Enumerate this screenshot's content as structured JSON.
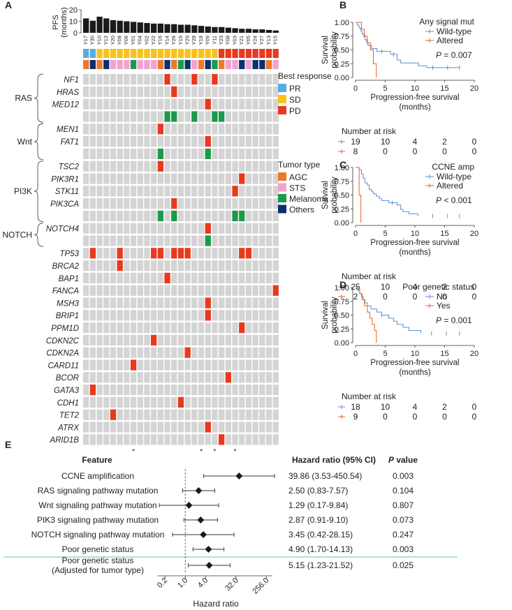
{
  "panels": {
    "A": "A",
    "B": "B",
    "C": "C",
    "D": "D",
    "E": "E"
  },
  "chart_data": [
    {
      "panel": "A",
      "type": "heatmap",
      "pfs": {
        "ylabel": "PFS (months)",
        "ylabel1": "PFS",
        "ylabel2": "(months)",
        "ticks": [
          0,
          10,
          20
        ],
        "ymax": 20,
        "values": [
          12.5,
          10.5,
          14,
          12.5,
          11,
          10.5,
          10,
          9.5,
          9,
          8.5,
          8,
          8,
          7.5,
          7.5,
          7,
          7,
          6.5,
          6,
          5.5,
          5,
          5,
          4.5,
          4,
          3.5,
          3.5,
          3,
          3,
          2.5,
          2
        ]
      },
      "patients": [
        "Y17",
        "Y30",
        "Y10",
        "Y12",
        "Y20",
        "Y08",
        "Y06",
        "Y01",
        "Y04",
        "Y02",
        "Y22",
        "Y16",
        "Y14",
        "Y26",
        "Y19",
        "Y29",
        "Y28",
        "Y18",
        "Y09",
        "Y11",
        "Y23",
        "Y08",
        "Y03",
        "Y21",
        "Y05",
        "Y24",
        "Y27",
        "Y13",
        "Y15"
      ],
      "best_response_legend_title": "Best response",
      "best_response_legend": [
        {
          "label": "PR",
          "color": "#5aace0"
        },
        {
          "label": "SD",
          "color": "#f7c21b"
        },
        {
          "label": "PD",
          "color": "#e8391e"
        }
      ],
      "best_response": [
        "PR",
        "PR",
        "SD",
        "SD",
        "SD",
        "SD",
        "SD",
        "SD",
        "SD",
        "SD",
        "SD",
        "SD",
        "SD",
        "SD",
        "SD",
        "SD",
        "SD",
        "SD",
        "SD",
        "SD",
        "PD",
        "PD",
        "PD",
        "PD",
        "PD",
        "PD",
        "PD",
        "PD",
        "PD"
      ],
      "tumor_type_legend_title": "Tumor type",
      "tumor_type_legend": [
        {
          "label": "AGC",
          "color": "#ec7a2a"
        },
        {
          "label": "STS",
          "color": "#f0a3cf"
        },
        {
          "label": "Melanoma",
          "color": "#1a9a4a"
        },
        {
          "label": "Others",
          "color": "#0e2f6e"
        }
      ],
      "tumor_type": [
        "AGC",
        "Others",
        "AGC",
        "Others",
        "STS",
        "STS",
        "STS",
        "Melanoma",
        "STS",
        "STS",
        "STS",
        "AGC",
        "Others",
        "AGC",
        "Melanoma",
        "Others",
        "STS",
        "AGC",
        "Others",
        "Melanoma",
        "AGC",
        "STS",
        "STS",
        "Others",
        "STS",
        "Others",
        "Others",
        "AGC",
        "STS"
      ],
      "pathways": [
        {
          "label": "RAS"
        },
        {
          "label": "Wnt"
        },
        {
          "label": "PI3K"
        },
        {
          "label": "NOTCH"
        }
      ],
      "genes": [
        "NF1",
        "HRAS",
        "MED12",
        "MEN1",
        "FAT1",
        "TSC2",
        "PIK3R1",
        "STK11",
        "PIK3CA",
        "NOTCH4",
        "TP53",
        "BRCA2",
        "BAP1",
        "FANCA",
        "MSH3",
        "BRIP1",
        "PPM1D",
        "CDKN2C",
        "CDKN2A",
        "CARD11",
        "BCOR",
        "GATA3",
        "CDH1",
        "TET2",
        "ATRX",
        "ARID1B"
      ],
      "asterisk": "*",
      "asterisk_cols": [
        7,
        17,
        19,
        22
      ]
    },
    {
      "panel": "B",
      "type": "line",
      "title": "Any signal mut",
      "xlabel": "Progression-free survival",
      "xlabel2": "(months)",
      "ylabel": "Survival probability",
      "ylabel1": "Survival",
      "ylabel2": "probability",
      "xticks": [
        0,
        5,
        10,
        15,
        20
      ],
      "yticks": [
        "0.00",
        "0.25",
        "0.50",
        "0.75",
        "1.00"
      ],
      "xlim": [
        0,
        20
      ],
      "ylim": [
        0,
        1
      ],
      "series": [
        {
          "name": "Wild-type",
          "color": "#5a8fd4",
          "x": [
            0,
            0.3,
            0.6,
            0.9,
            1.1,
            1.4,
            1.6,
            1.9,
            2.1,
            2.4,
            2.7,
            3.0,
            3.3,
            3.6,
            4.0,
            4.6,
            5.1,
            5.9,
            7.0,
            7.6,
            8.2,
            10.6,
            12.0,
            17.5
          ],
          "y": [
            1.0,
            0.947,
            0.895,
            0.842,
            0.789,
            0.737,
            0.684,
            0.632,
            0.579,
            0.579,
            0.526,
            0.526,
            0.526,
            0.474,
            0.474,
            0.474,
            0.474,
            0.421,
            0.316,
            0.263,
            0.263,
            0.211,
            0.179,
            0.179
          ],
          "censor_x": [
            4.4,
            6.4,
            13.0,
            15.5,
            17.5
          ]
        },
        {
          "name": "Altered",
          "color": "#e8611c",
          "x": [
            0,
            1.0,
            1.5,
            2.0,
            2.5,
            3.0,
            3.5
          ],
          "y": [
            1.0,
            0.875,
            0.75,
            0.625,
            0.5,
            0.25,
            0
          ],
          "censor_x": []
        }
      ],
      "pvalue": "P = 0.007",
      "risk_title": "Number at risk",
      "risk": [
        {
          "color": "#5a8fd4",
          "values": [
            "19",
            "10",
            "4",
            "2",
            "0"
          ]
        },
        {
          "color": "#e8611c",
          "values": [
            "8",
            "0",
            "0",
            "0",
            "0"
          ]
        }
      ]
    },
    {
      "panel": "C",
      "type": "line",
      "title": "CCNE amp",
      "xlabel": "Progression-free survival",
      "xlabel2": "(months)",
      "ylabel": "Survival probability",
      "ylabel1": "Survival",
      "ylabel2": "probability",
      "xticks": [
        0,
        5,
        10,
        15,
        20
      ],
      "yticks": [
        "0.00",
        "0.25",
        "0.50",
        "0.75",
        "1.00"
      ],
      "xlim": [
        0,
        20
      ],
      "ylim": [
        0,
        1
      ],
      "series": [
        {
          "name": "Wild-type",
          "color": "#5a8fd4",
          "x": [
            0,
            0.6,
            1.0,
            1.3,
            1.6,
            2.0,
            2.3,
            2.7,
            3.0,
            3.5,
            4.0,
            4.4,
            5.0,
            5.6,
            6.2,
            7.0,
            7.6,
            8.0,
            9.0,
            10.5
          ],
          "y": [
            1.0,
            0.96,
            0.88,
            0.8,
            0.72,
            0.68,
            0.6,
            0.56,
            0.52,
            0.48,
            0.44,
            0.4,
            0.4,
            0.36,
            0.36,
            0.32,
            0.24,
            0.2,
            0.16,
            0.12
          ],
          "censor_x": [
            6.2,
            13.0,
            15.5,
            17.5
          ]
        },
        {
          "name": "Altered",
          "color": "#e8611c",
          "x": [
            0,
            0.6,
            0.9
          ],
          "y": [
            1.0,
            0.5,
            0
          ],
          "censor_x": []
        }
      ],
      "pvalue": "P < 0.001",
      "risk_title": "Number at risk",
      "risk": [
        {
          "color": "#5a8fd4",
          "values": [
            "25",
            "10",
            "4",
            "2",
            "0"
          ]
        },
        {
          "color": "#e8611c",
          "values": [
            "2",
            "0",
            "0",
            "0",
            "0"
          ]
        }
      ]
    },
    {
      "panel": "D",
      "type": "line",
      "title": "Poor genetic status",
      "xlabel": "Progression-free survival",
      "xlabel2": "(months)",
      "ylabel": "Survival probability",
      "ylabel1": "Survival",
      "ylabel2": "probability",
      "xticks": [
        0,
        5,
        10,
        15,
        20
      ],
      "yticks": [
        "0.00",
        "0.25",
        "0.50",
        "0.75",
        "1.00"
      ],
      "xlim": [
        0,
        20
      ],
      "ylim": [
        0,
        1
      ],
      "series": [
        {
          "name": "No",
          "color": "#5a8fd4",
          "x": [
            0,
            0.4,
            0.7,
            1.0,
            1.3,
            1.6,
            2.0,
            2.6,
            3.0,
            3.6,
            4.4,
            5.0,
            5.6,
            6.4,
            7.0,
            8.0,
            9.0,
            11.0
          ],
          "y": [
            1.0,
            0.944,
            0.889,
            0.833,
            0.778,
            0.722,
            0.667,
            0.611,
            0.611,
            0.556,
            0.5,
            0.5,
            0.444,
            0.389,
            0.333,
            0.278,
            0.222,
            0.167
          ],
          "censor_x": [
            4.4,
            12.8,
            15.3,
            17.5
          ]
        },
        {
          "name": "Yes",
          "color": "#e8611c",
          "x": [
            0,
            0.7,
            1.1,
            1.5,
            2.0,
            2.4,
            2.8,
            3.2,
            3.5
          ],
          "y": [
            1.0,
            0.889,
            0.778,
            0.667,
            0.556,
            0.444,
            0.333,
            0.222,
            0
          ]
        }
      ],
      "pvalue": "P = 0.001",
      "risk_title": "Number at risk",
      "risk": [
        {
          "color": "#5a8fd4",
          "values": [
            "18",
            "10",
            "4",
            "2",
            "0"
          ]
        },
        {
          "color": "#e8611c",
          "values": [
            "9",
            "0",
            "0",
            "0",
            "0"
          ]
        }
      ]
    },
    {
      "panel": "E",
      "type": "scatter",
      "subtype": "forest",
      "headers": {
        "feature": "Feature",
        "hr": "Hazard ratio (95% CI)",
        "p": "P value",
        "p_italic": "P",
        "p_rest": " value"
      },
      "xlabel": "Hazard ratio",
      "xticks": [
        "0.2",
        "1.0",
        "4.0",
        "32.0",
        "256.0"
      ],
      "xtick_values": [
        0.25,
        1,
        4,
        32,
        256
      ],
      "xlim_log2": [
        -2.7,
        8.6
      ],
      "rows": [
        {
          "feature": "CCNE amplification",
          "hr": 39.86,
          "lo": 3.53,
          "hi": 450.54,
          "hr_text": "39.86 (3.53-450.54)",
          "p": "0.003"
        },
        {
          "feature": "RAS signaling pathway mutation",
          "hr": 2.5,
          "lo": 0.83,
          "hi": 7.57,
          "hr_text": "2.50 (0.83-7.57)",
          "p": "0.104"
        },
        {
          "feature": "Wnt signaling pathway mutation",
          "hr": 1.29,
          "lo": 0.17,
          "hi": 9.84,
          "hr_text": "1.29 (0.17-9.84)",
          "p": "0.807"
        },
        {
          "feature": "PIK3 signaling pathway mutation",
          "hr": 2.87,
          "lo": 0.91,
          "hi": 9.1,
          "hr_text": "2.87 (0.91-9.10)",
          "p": "0.073"
        },
        {
          "feature": "NOTCH signaling pathway mutation",
          "hr": 3.45,
          "lo": 0.42,
          "hi": 28.15,
          "hr_text": "3.45 (0.42-28.15)",
          "p": "0.247"
        },
        {
          "feature": "Poor genetic status",
          "hr": 4.9,
          "lo": 1.7,
          "hi": 14.13,
          "hr_text": "4.90 (1.70-14.13)",
          "p": "0.003"
        },
        {
          "feature": "Poor genetic status",
          "feature2": "(Adjusted for tumor type)",
          "hr": 5.15,
          "lo": 1.23,
          "hi": 21.52,
          "hr_text": "5.15 (1.23-21.52)",
          "p": "0.025"
        }
      ]
    }
  ]
}
